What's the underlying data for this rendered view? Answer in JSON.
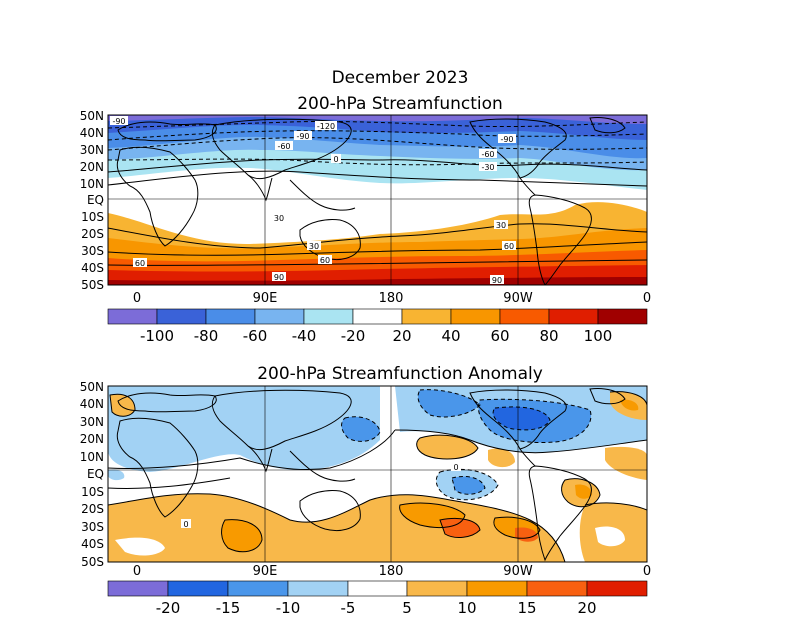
{
  "figure": {
    "month_title": "December 2023",
    "panel1_title": "200-hPa Streamfunction",
    "panel2_title": "200-hPa Streamfunction Anomaly"
  },
  "axes": {
    "lat_labels": [
      "50N",
      "40N",
      "30N",
      "20N",
      "10N",
      "EQ",
      "10S",
      "20S",
      "30S",
      "40S",
      "50S"
    ],
    "lon_labels": [
      "0",
      "90E",
      "180",
      "90W",
      "0"
    ]
  },
  "panel1": {
    "colorbar": {
      "labels": [
        "-100",
        "-80",
        "-60",
        "-40",
        "-20",
        "20",
        "40",
        "60",
        "80",
        "100"
      ],
      "colors": [
        "#7c6cd8",
        "#3a62d8",
        "#4a8de8",
        "#78b4f0",
        "#aae4f2",
        "#ffffff",
        "#f8b432",
        "#f89600",
        "#f85a00",
        "#e01e00",
        "#a00000"
      ]
    },
    "contour_labels": [
      "-90",
      "-120",
      "-90",
      "-90",
      "-60",
      "-60",
      "-30",
      "0",
      "30",
      "60",
      "30",
      "60",
      "90",
      "90",
      "30",
      "60"
    ]
  },
  "panel2": {
    "colorbar": {
      "labels": [
        "-20",
        "-15",
        "-10",
        "-5",
        "5",
        "10",
        "15",
        "20"
      ],
      "colors": [
        "#7c6cd8",
        "#2266e0",
        "#4a96ea",
        "#a2d2f4",
        "#ffffff",
        "#f8b84a",
        "#f89a00",
        "#f86010",
        "#e01e00"
      ]
    },
    "contour_labels": [
      "0",
      "0"
    ]
  }
}
